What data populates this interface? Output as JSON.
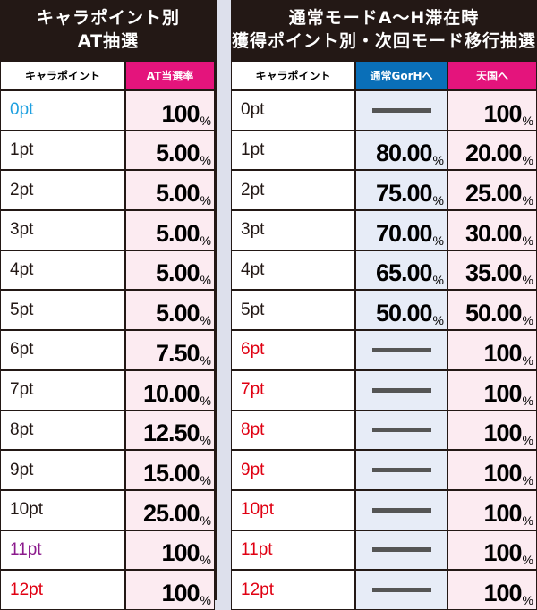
{
  "left": {
    "title_line1": "キャラポイント別",
    "title_line2": "AT抽選",
    "col_point": "キャラポイント",
    "col_rate": "AT当選率",
    "rows": [
      {
        "point": "0pt",
        "color": "#1ea0e0",
        "rate": "100"
      },
      {
        "point": "1pt",
        "color": "#231815",
        "rate": "5.00"
      },
      {
        "point": "2pt",
        "color": "#231815",
        "rate": "5.00"
      },
      {
        "point": "3pt",
        "color": "#231815",
        "rate": "5.00"
      },
      {
        "point": "4pt",
        "color": "#231815",
        "rate": "5.00"
      },
      {
        "point": "5pt",
        "color": "#231815",
        "rate": "5.00"
      },
      {
        "point": "6pt",
        "color": "#231815",
        "rate": "7.50"
      },
      {
        "point": "7pt",
        "color": "#231815",
        "rate": "10.00"
      },
      {
        "point": "8pt",
        "color": "#231815",
        "rate": "12.50"
      },
      {
        "point": "9pt",
        "color": "#231815",
        "rate": "15.00"
      },
      {
        "point": "10pt",
        "color": "#231815",
        "rate": "25.00"
      },
      {
        "point": "11pt",
        "color": "#8b1a8c",
        "rate": "100"
      },
      {
        "point": "12pt",
        "color": "#e00012",
        "rate": "100"
      }
    ]
  },
  "right": {
    "title_line1": "通常モードA～H滞在時",
    "title_line2": "獲得ポイント別・次回モード移行抽選",
    "col_point": "キャラポイント",
    "col_normal": "通常GorHへ",
    "col_heaven": "天国へ",
    "col_normal_color": "#0a6fb8",
    "col_heaven_color": "#e4147c",
    "rows": [
      {
        "point": "0pt",
        "color": "#231815",
        "normal": null,
        "heaven": "100"
      },
      {
        "point": "1pt",
        "color": "#231815",
        "normal": "80.00",
        "heaven": "20.00"
      },
      {
        "point": "2pt",
        "color": "#231815",
        "normal": "75.00",
        "heaven": "25.00"
      },
      {
        "point": "3pt",
        "color": "#231815",
        "normal": "70.00",
        "heaven": "30.00"
      },
      {
        "point": "4pt",
        "color": "#231815",
        "normal": "65.00",
        "heaven": "35.00"
      },
      {
        "point": "5pt",
        "color": "#231815",
        "normal": "50.00",
        "heaven": "50.00"
      },
      {
        "point": "6pt",
        "color": "#e00012",
        "normal": null,
        "heaven": "100"
      },
      {
        "point": "7pt",
        "color": "#e00012",
        "normal": null,
        "heaven": "100"
      },
      {
        "point": "8pt",
        "color": "#e00012",
        "normal": null,
        "heaven": "100"
      },
      {
        "point": "9pt",
        "color": "#e00012",
        "normal": null,
        "heaven": "100"
      },
      {
        "point": "10pt",
        "color": "#e00012",
        "normal": null,
        "heaven": "100"
      },
      {
        "point": "11pt",
        "color": "#e00012",
        "normal": null,
        "heaven": "100"
      },
      {
        "point": "12pt",
        "color": "#e00012",
        "normal": null,
        "heaven": "100"
      }
    ]
  },
  "percent_sign": "%"
}
